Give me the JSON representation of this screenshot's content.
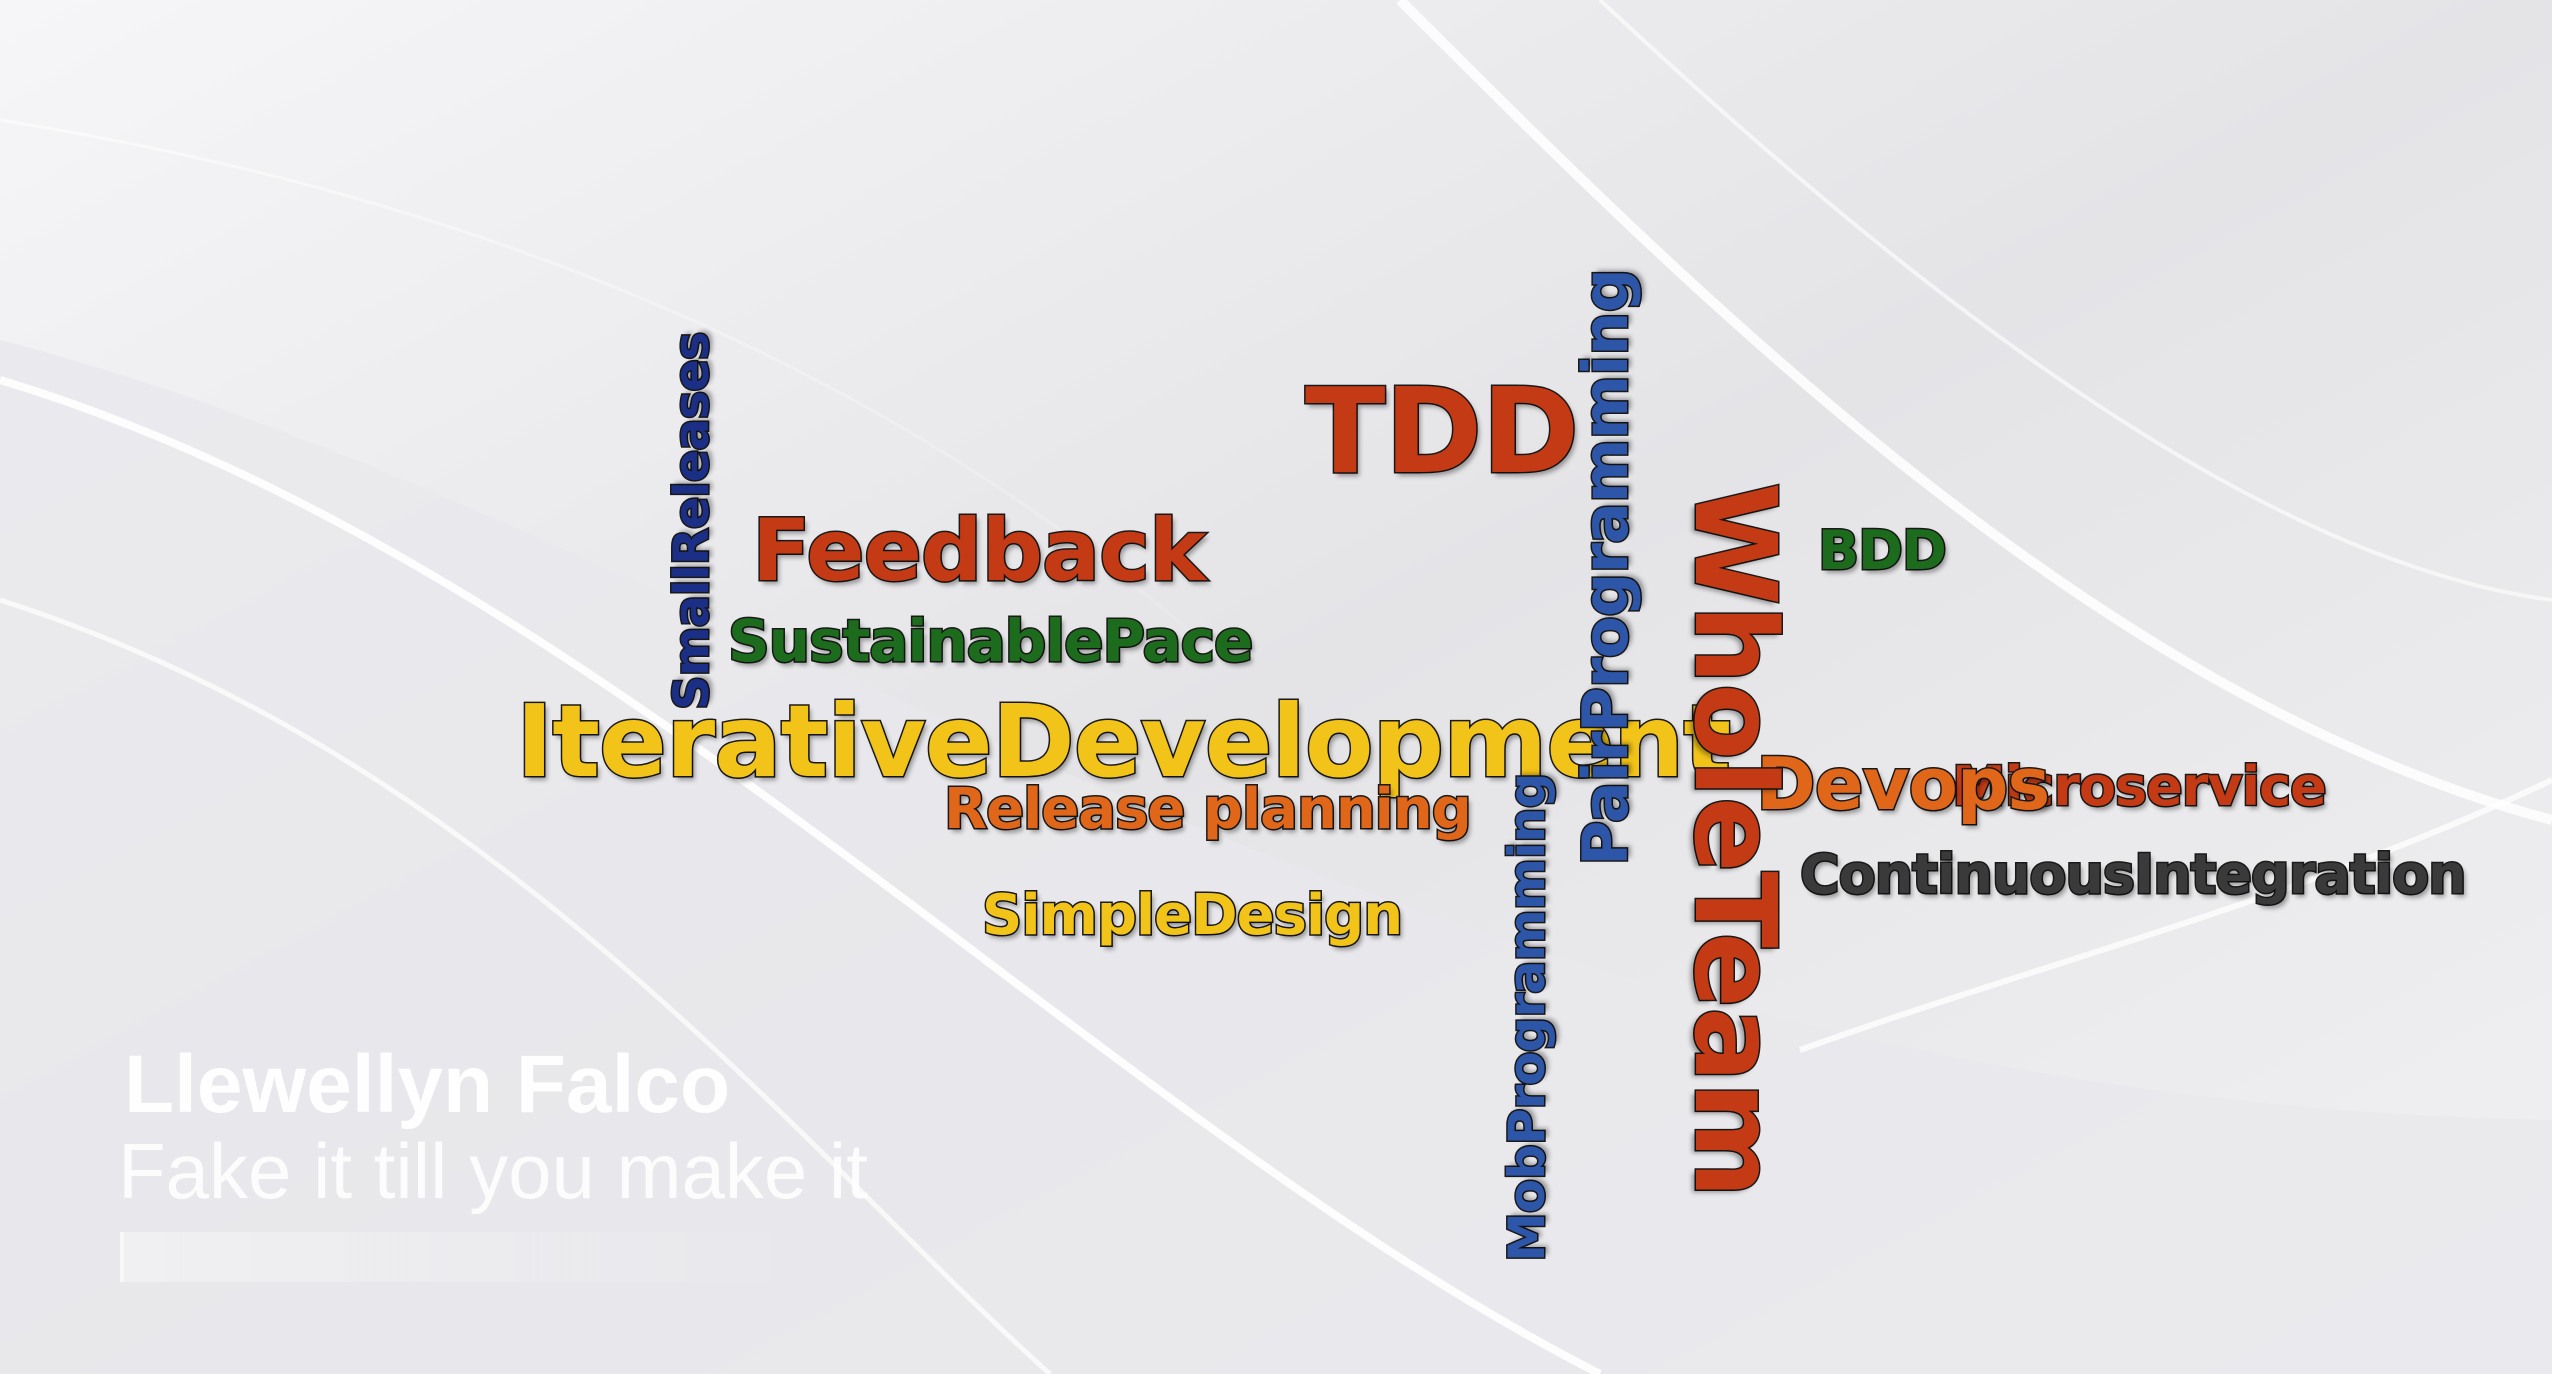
{
  "colors": {
    "red": "#c43a15",
    "orange": "#e0661a",
    "yellow": "#f2c318",
    "green": "#1d6b1d",
    "blue": "#2d55a8",
    "darkblue": "#1c2f86",
    "gray": "#3a3a3a",
    "background": "#ececee"
  },
  "words": {
    "tdd": "TDD",
    "pair_programming": "PairProgramming",
    "small_releases": "SmallReleases",
    "feedback": "Feedback",
    "whole_team": "WholeTeam",
    "bdd": "BDD",
    "sustainable_pace": "SustainablePace",
    "iterative_development": "IterativeDevelopment",
    "devops": "Devops",
    "microservice": "Microservice",
    "release_planning": "Release planning",
    "continuous_integration": "ContinuousIntegration",
    "simple_design": "SimpleDesign",
    "mob_programming": "MobProgramming"
  },
  "overlay": {
    "speaker_name": "Llewellyn Falco",
    "talk_title": "Fake it till you make it"
  }
}
